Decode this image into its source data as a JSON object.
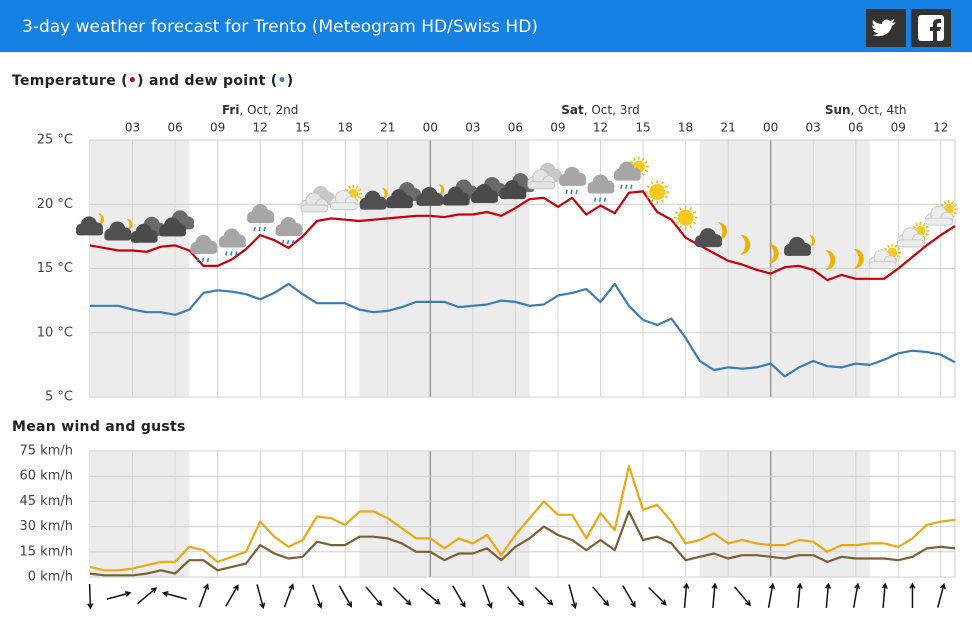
{
  "header": {
    "title": "3-day weather forecast for Trento (Meteogram HD/Swiss HD)"
  },
  "chart_data": [
    {
      "type": "line",
      "title": "Temperature (•) and dew point (•)",
      "x": [
        0,
        1,
        2,
        3,
        4,
        5,
        6,
        7,
        8,
        9,
        10,
        11,
        12,
        13,
        14,
        15,
        16,
        17,
        18,
        19,
        20,
        21,
        22,
        23,
        24,
        25,
        26,
        27,
        28,
        29,
        30,
        31,
        32,
        33,
        34,
        35,
        36,
        37,
        38,
        39,
        40,
        41,
        42,
        43,
        44,
        45,
        46,
        47,
        48,
        49,
        50,
        51,
        52,
        53,
        54,
        55,
        56,
        57,
        58,
        59,
        60,
        61
      ],
      "xlim": [
        0,
        61
      ],
      "xticks": [
        {
          "value": 3,
          "label": "03"
        },
        {
          "value": 6,
          "label": "06"
        },
        {
          "value": 9,
          "label": "09"
        },
        12,
        15,
        18,
        21,
        {
          "value": 24,
          "label": "00"
        },
        {
          "value": 27,
          "label": "03"
        },
        {
          "value": 30,
          "label": "06"
        },
        {
          "value": 33,
          "label": "09"
        },
        {
          "value": 36,
          "label": "12"
        },
        {
          "value": 39,
          "label": "15"
        },
        {
          "value": 42,
          "label": "18"
        },
        {
          "value": 45,
          "label": "21"
        },
        {
          "value": 48,
          "label": "00"
        },
        {
          "value": 51,
          "label": "03"
        },
        {
          "value": 54,
          "label": "06"
        },
        {
          "value": 57,
          "label": "09"
        },
        {
          "value": 60,
          "label": "12"
        }
      ],
      "day_labels": [
        {
          "value": 12,
          "label": "Fri, Oct, 2nd"
        },
        {
          "value": 36,
          "label": "Sat, Oct, 3rd"
        },
        {
          "value": 54.7,
          "label": "Sun, Oct, 4th"
        }
      ],
      "ylim": [
        5,
        25
      ],
      "yticks": [
        {
          "value": 5,
          "label": "5 °C"
        },
        {
          "value": 10,
          "label": "10 °C"
        },
        {
          "value": 15,
          "label": "15 °C"
        },
        {
          "value": 20,
          "label": "20 °C"
        },
        {
          "value": 25,
          "label": "25 °C"
        }
      ],
      "grid": true,
      "series": [
        {
          "color": "#c8000a",
          "values": [
            16.8,
            16.6,
            16.4,
            16.4,
            16.3,
            16.7,
            16.8,
            16.4,
            15.2,
            15.2,
            15.7,
            16.5,
            17.6,
            17.2,
            16.6,
            17.5,
            18.7,
            18.9,
            18.8,
            18.7,
            18.8,
            18.9,
            19.0,
            19.1,
            19.1,
            19.0,
            19.2,
            19.2,
            19.4,
            19.1,
            19.7,
            20.4,
            20.5,
            19.8,
            20.5,
            19.2,
            19.9,
            19.3,
            20.9,
            21.0,
            19.4,
            18.8,
            17.4,
            16.8,
            16.2,
            15.6,
            15.3,
            14.9,
            14.6,
            15.1,
            15.2,
            14.9,
            14.1,
            14.5,
            14.2,
            14.2,
            14.2,
            15.0,
            15.9,
            16.8,
            17.6,
            18.3
          ]
        },
        {
          "color": "#3a7bb8",
          "values": [
            12.1,
            12.1,
            12.1,
            11.8,
            11.6,
            11.6,
            11.4,
            11.8,
            13.1,
            13.3,
            13.2,
            13.0,
            12.6,
            13.1,
            13.8,
            13.0,
            12.3,
            12.3,
            12.3,
            11.8,
            11.6,
            11.7,
            12.0,
            12.4,
            12.4,
            12.4,
            12.0,
            12.1,
            12.2,
            12.5,
            12.4,
            12.1,
            12.2,
            12.9,
            13.1,
            13.4,
            12.4,
            13.8,
            12.1,
            11.0,
            10.6,
            11.1,
            9.6,
            7.8,
            7.1,
            7.3,
            7.2,
            7.3,
            7.6,
            6.6,
            7.3,
            7.8,
            7.4,
            7.3,
            7.6,
            7.5,
            7.9,
            8.4,
            8.6,
            8.5,
            8.3,
            7.7
          ]
        }
      ]
    },
    {
      "type": "line",
      "title": "Mean wind and gusts",
      "x": [
        0,
        1,
        2,
        3,
        4,
        5,
        6,
        7,
        8,
        9,
        10,
        11,
        12,
        13,
        14,
        15,
        16,
        17,
        18,
        19,
        20,
        21,
        22,
        23,
        24,
        25,
        26,
        27,
        28,
        29,
        30,
        31,
        32,
        33,
        34,
        35,
        36,
        37,
        38,
        39,
        40,
        41,
        42,
        43,
        44,
        45,
        46,
        47,
        48,
        49,
        50,
        51,
        52,
        53,
        54,
        55,
        56,
        57,
        58,
        59,
        60,
        61
      ],
      "xlim": [
        0,
        61
      ],
      "ylim": [
        0,
        75
      ],
      "yticks": [
        {
          "value": 0,
          "label": "0 km/h"
        },
        {
          "value": 15,
          "label": "15 km/h"
        },
        {
          "value": 30,
          "label": "30 km/h"
        },
        {
          "value": 45,
          "label": "45 km/h"
        },
        {
          "value": 60,
          "label": "60 km/h"
        },
        {
          "value": 75,
          "label": "75 km/h"
        }
      ],
      "grid": true,
      "series": [
        {
          "color": "#eaa814",
          "values": [
            6,
            4,
            4,
            5,
            7,
            9,
            9,
            18,
            16,
            9,
            12,
            15,
            33,
            24,
            18,
            22,
            36,
            35,
            31,
            39,
            39,
            35,
            29,
            23,
            23,
            17,
            23,
            20,
            25,
            13,
            25,
            35,
            45,
            37,
            37,
            23,
            38,
            28,
            66,
            40,
            43,
            33,
            20,
            22,
            26,
            20,
            22,
            20,
            19,
            19,
            22,
            21,
            15,
            19,
            19,
            20,
            20,
            18,
            23,
            31,
            33,
            34
          ]
        },
        {
          "color": "#7b5f36",
          "values": [
            2,
            1,
            1,
            1,
            2,
            4,
            2,
            10,
            10,
            4,
            6,
            8,
            19,
            14,
            11,
            12,
            21,
            19,
            19,
            24,
            24,
            23,
            20,
            15,
            15,
            10,
            14,
            14,
            17,
            10,
            18,
            23,
            30,
            25,
            22,
            16,
            22,
            16,
            39,
            22,
            24,
            20,
            10,
            12,
            14,
            11,
            13,
            13,
            12,
            11,
            13,
            13,
            9,
            12,
            11,
            11,
            11,
            10,
            12,
            17,
            18,
            17
          ]
        }
      ]
    }
  ]
}
